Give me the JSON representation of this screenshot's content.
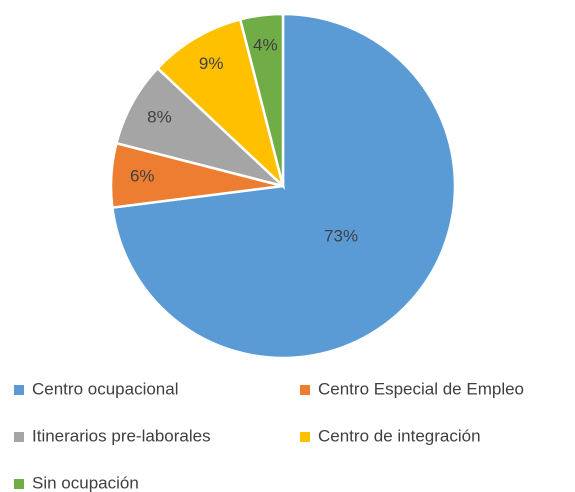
{
  "chart_data": {
    "type": "pie",
    "categories": [
      "Centro ocupacional",
      "Centro Especial de Empleo",
      "Itinerarios pre-laborales",
      "Centro de integración",
      "Sin ocupación"
    ],
    "values": [
      73,
      6,
      8,
      9,
      4
    ],
    "value_labels": [
      "73%",
      "6%",
      "8%",
      "9%",
      "4%"
    ],
    "colors": [
      "#5b9bd5",
      "#ed7d31",
      "#a5a5a5",
      "#ffc000",
      "#70ad47"
    ],
    "legend": "bottom"
  }
}
